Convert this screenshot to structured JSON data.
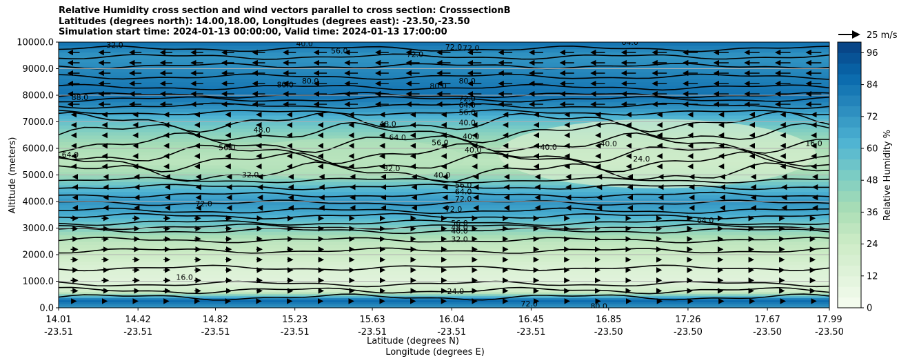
{
  "title": {
    "line1": "Relative Humidity cross section and wind vectors parallel to cross section: CrosssectionB",
    "line2": "Latitudes (degrees north): 14.00,18.00, Longitudes (degrees east): -23.50,-23.50",
    "line3": "Simulation start time: 2024-01-13 00:00:00, Valid time: 2024-01-13 17:00:00"
  },
  "axes": {
    "ylabel": "Altitude (meters)",
    "xlabel_lat": "Latitude (degrees N)",
    "xlabel_lon": "Longitude (degrees E)",
    "colorbar_label": "Relative Humidity %",
    "quiver_key": "25 m/s"
  },
  "chart_data": {
    "type": "heatmap",
    "subtype": "cross-section contour with wind vectors",
    "y_ticks": [
      "0.0",
      "1000.0",
      "2000.0",
      "3000.0",
      "4000.0",
      "5000.0",
      "6000.0",
      "7000.0",
      "8000.0",
      "9000.0",
      "10000.0"
    ],
    "ylim": [
      0,
      10000
    ],
    "x_ticks_lat": [
      "14.01",
      "14.42",
      "14.82",
      "15.23",
      "15.63",
      "16.04",
      "16.45",
      "16.85",
      "17.26",
      "17.67",
      "17.99"
    ],
    "x_ticks_lon": [
      "-23.51",
      "-23.51",
      "-23.51",
      "-23.51",
      "-23.51",
      "-23.51",
      "-23.51",
      "-23.50",
      "-23.50",
      "-23.50",
      "-23.50"
    ],
    "colorbar_ticks": [
      "0",
      "12",
      "24",
      "36",
      "48",
      "60",
      "72",
      "84",
      "96"
    ],
    "colorbar_range": [
      0,
      100
    ],
    "colormap": "GnBu",
    "grid": "horizontal lines",
    "rh_profile": [
      {
        "altitude": 0,
        "rh": 70
      },
      {
        "altitude": 300,
        "rh": 88
      },
      {
        "altitude": 600,
        "rh": 24
      },
      {
        "altitude": 1000,
        "rh": 12
      },
      {
        "altitude": 1500,
        "rh": 16
      },
      {
        "altitude": 2000,
        "rh": 24
      },
      {
        "altitude": 2500,
        "rh": 30
      },
      {
        "altitude": 3000,
        "rh": 48
      },
      {
        "altitude": 3500,
        "rh": 64
      },
      {
        "altitude": 4000,
        "rh": 72
      },
      {
        "altitude": 4500,
        "rh": 60
      },
      {
        "altitude": 5000,
        "rh": 40
      },
      {
        "altitude": 5500,
        "rh": 30
      },
      {
        "altitude": 6000,
        "rh": 36
      },
      {
        "altitude": 6500,
        "rh": 44
      },
      {
        "altitude": 7000,
        "rh": 56
      },
      {
        "altitude": 7500,
        "rh": 72
      },
      {
        "altitude": 8000,
        "rh": 84
      },
      {
        "altitude": 8500,
        "rh": 80
      },
      {
        "altitude": 9000,
        "rh": 76
      },
      {
        "altitude": 9500,
        "rh": 72
      },
      {
        "altitude": 10000,
        "rh": 84
      }
    ],
    "contour_labels": [
      {
        "text": "32.0",
        "lat": 14.3,
        "alt": 9900
      },
      {
        "text": "40.0",
        "lat": 15.28,
        "alt": 9950
      },
      {
        "text": "56.0",
        "lat": 15.46,
        "alt": 9670
      },
      {
        "text": "72.0",
        "lat": 15.85,
        "alt": 9550
      },
      {
        "text": "72.0",
        "lat": 16.05,
        "alt": 9820
      },
      {
        "text": "72.0",
        "lat": 16.14,
        "alt": 9780
      },
      {
        "text": "64.0",
        "lat": 16.96,
        "alt": 10000
      },
      {
        "text": "80.0",
        "lat": 16.12,
        "alt": 8540
      },
      {
        "text": "80.0",
        "lat": 15.18,
        "alt": 8400
      },
      {
        "text": "80.0",
        "lat": 15.31,
        "alt": 8540
      },
      {
        "text": "80.0",
        "lat": 15.97,
        "alt": 8350
      },
      {
        "text": "88.0",
        "lat": 14.12,
        "alt": 7920
      },
      {
        "text": "72.0",
        "lat": 16.12,
        "alt": 7880
      },
      {
        "text": "64.0",
        "lat": 16.12,
        "alt": 7630
      },
      {
        "text": "56.0",
        "lat": 16.12,
        "alt": 7360
      },
      {
        "text": "40.0",
        "lat": 16.12,
        "alt": 6970
      },
      {
        "text": "40.0",
        "lat": 16.14,
        "alt": 6450
      },
      {
        "text": "40.0",
        "lat": 16.15,
        "alt": 5950
      },
      {
        "text": "40.0",
        "lat": 16.54,
        "alt": 6050
      },
      {
        "text": "40.0",
        "lat": 16.85,
        "alt": 6180
      },
      {
        "text": "48.0",
        "lat": 15.06,
        "alt": 6700
      },
      {
        "text": "48.0",
        "lat": 15.71,
        "alt": 6920
      },
      {
        "text": "64.0",
        "lat": 15.76,
        "alt": 6420
      },
      {
        "text": "56.0",
        "lat": 15.98,
        "alt": 6220
      },
      {
        "text": "56.0",
        "lat": 14.88,
        "alt": 6040
      },
      {
        "text": "64.0",
        "lat": 14.07,
        "alt": 5770
      },
      {
        "text": "32.0",
        "lat": 15.73,
        "alt": 5250
      },
      {
        "text": "32.0",
        "lat": 15.0,
        "alt": 5010
      },
      {
        "text": "40.0",
        "lat": 15.99,
        "alt": 5000
      },
      {
        "text": "24.0",
        "lat": 17.02,
        "alt": 5610
      },
      {
        "text": "16.0",
        "lat": 17.91,
        "alt": 6200
      },
      {
        "text": "56.0",
        "lat": 16.1,
        "alt": 4620
      },
      {
        "text": "64.0",
        "lat": 16.1,
        "alt": 4380
      },
      {
        "text": "72.0",
        "lat": 16.1,
        "alt": 4100
      },
      {
        "text": "72.0",
        "lat": 16.05,
        "alt": 3720
      },
      {
        "text": "72.0",
        "lat": 14.76,
        "alt": 3920
      },
      {
        "text": "64.0",
        "lat": 17.35,
        "alt": 3300
      },
      {
        "text": "56.0",
        "lat": 16.08,
        "alt": 3200
      },
      {
        "text": "48.0",
        "lat": 16.08,
        "alt": 3020
      },
      {
        "text": "40.0",
        "lat": 16.08,
        "alt": 2890
      },
      {
        "text": "32.0",
        "lat": 16.08,
        "alt": 2580
      },
      {
        "text": "16.0",
        "lat": 14.66,
        "alt": 1150
      },
      {
        "text": "24.0",
        "lat": 16.06,
        "alt": 620
      },
      {
        "text": "80.0",
        "lat": 16.8,
        "alt": 70
      },
      {
        "text": "72.0",
        "lat": 16.44,
        "alt": 150
      }
    ],
    "wind_note": "u-wind mostly westward (easterly) aloft, eastward in 500-3500 m layer"
  },
  "colors": {
    "frame": "#000000",
    "gridline": "#b0b0b0"
  }
}
